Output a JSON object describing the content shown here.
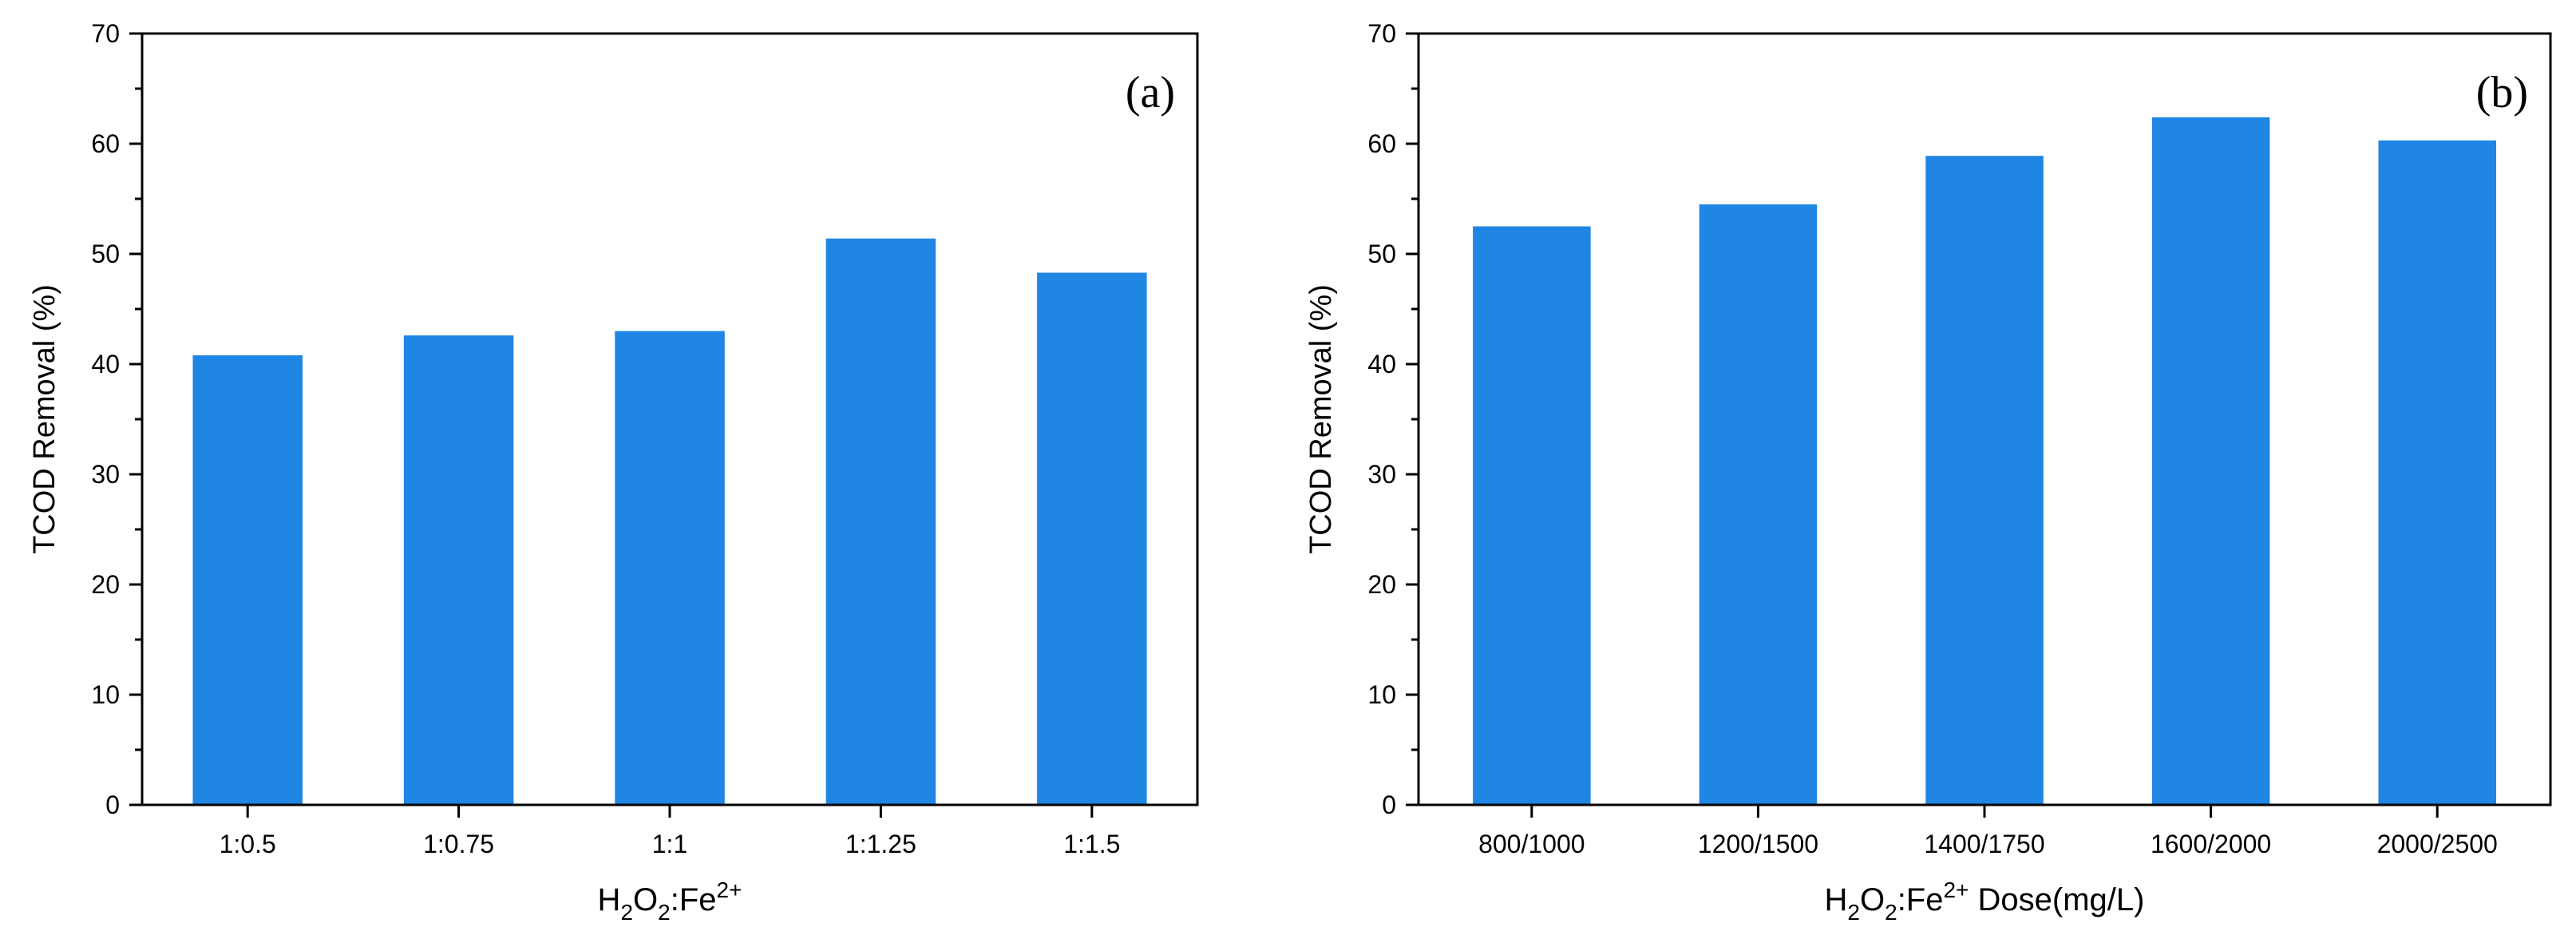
{
  "chart_data": [
    {
      "type": "bar",
      "panel_label": "(a)",
      "categories": [
        "1:0.5",
        "1:0.75",
        "1:1",
        "1:1.25",
        "1:1.5"
      ],
      "values": [
        40.8,
        42.6,
        43.0,
        51.4,
        48.3
      ],
      "ylabel": "TCOD Removal (%)",
      "xlabel_parts": [
        "H",
        "2",
        "O",
        "2",
        ":Fe",
        "2+",
        ""
      ],
      "ylim": [
        0,
        70
      ],
      "yticks": [
        0,
        10,
        20,
        30,
        40,
        50,
        60,
        70
      ],
      "bar_color": "#1f86e3",
      "grid": false
    },
    {
      "type": "bar",
      "panel_label": "(b)",
      "categories": [
        "800/1000",
        "1200/1500",
        "1400/1750",
        "1600/2000",
        "2000/2500"
      ],
      "values": [
        52.5,
        54.5,
        58.9,
        62.4,
        60.3
      ],
      "ylabel": "TCOD Removal (%)",
      "xlabel_parts": [
        "H",
        "2",
        "O",
        "2",
        ":Fe",
        "2+",
        " Dose(mg/L)"
      ],
      "ylim": [
        0,
        70
      ],
      "yticks": [
        0,
        10,
        20,
        30,
        40,
        50,
        60,
        70
      ],
      "bar_color": "#1f86e3",
      "grid": false
    }
  ]
}
